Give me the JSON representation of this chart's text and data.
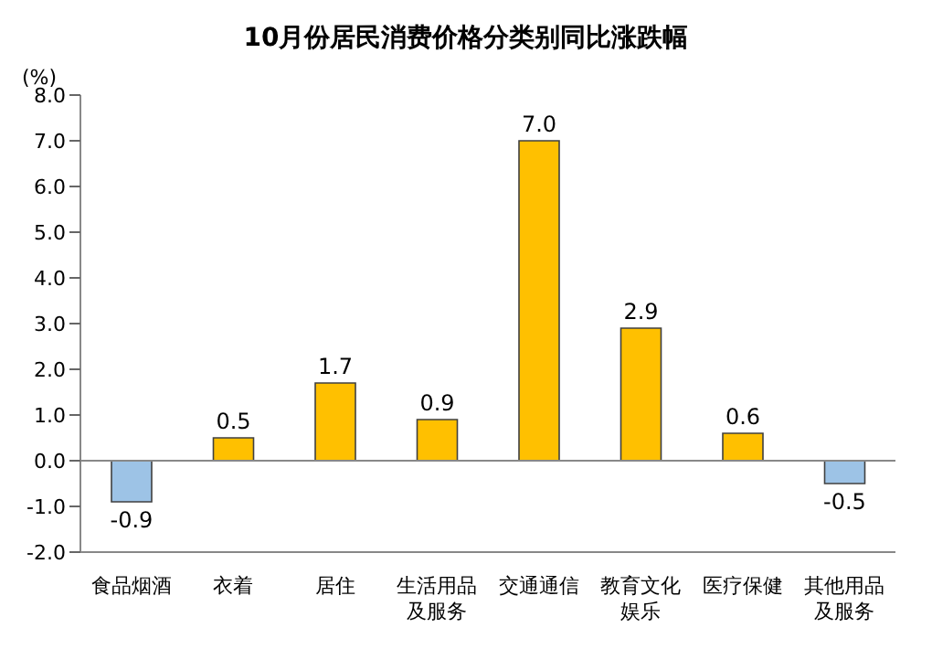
{
  "chart_data": {
    "type": "bar",
    "title": "10月份居民消费价格分类别同比涨跌幅",
    "ylabel": "(%)",
    "categories": [
      "食品烟酒",
      "衣着",
      "居住",
      "生活用品及服务",
      "交通通信",
      "教育文化娱乐",
      "医疗保健",
      "其他用品及服务"
    ],
    "values": [
      -0.9,
      0.5,
      1.7,
      0.9,
      7.0,
      2.9,
      0.6,
      -0.5
    ],
    "colors": [
      "#9dc3e6",
      "#ffc000",
      "#ffc000",
      "#ffc000",
      "#ffc000",
      "#ffc000",
      "#ffc000",
      "#9dc3e6"
    ],
    "value_labels": [
      "-0.9",
      "0.5",
      "1.7",
      "0.9",
      "7.0",
      "2.9",
      "0.6",
      "-0.5"
    ],
    "ylim": [
      -2,
      8
    ],
    "yticks": [
      {
        "value": -2,
        "label": "-2.0"
      },
      {
        "value": -1,
        "label": "-1.0"
      },
      {
        "value": 0,
        "label": "0.0"
      },
      {
        "value": 1,
        "label": "1.0"
      },
      {
        "value": 2,
        "label": "2.0"
      },
      {
        "value": 3,
        "label": "3.0"
      },
      {
        "value": 4,
        "label": "4.0"
      },
      {
        "value": 5,
        "label": "5.0"
      },
      {
        "value": 6,
        "label": "6.0"
      },
      {
        "value": 7,
        "label": "7.0"
      },
      {
        "value": 8,
        "label": "8.0"
      }
    ],
    "ref_lines": [
      {
        "axis": "y",
        "value": 0
      }
    ],
    "legend": false
  }
}
